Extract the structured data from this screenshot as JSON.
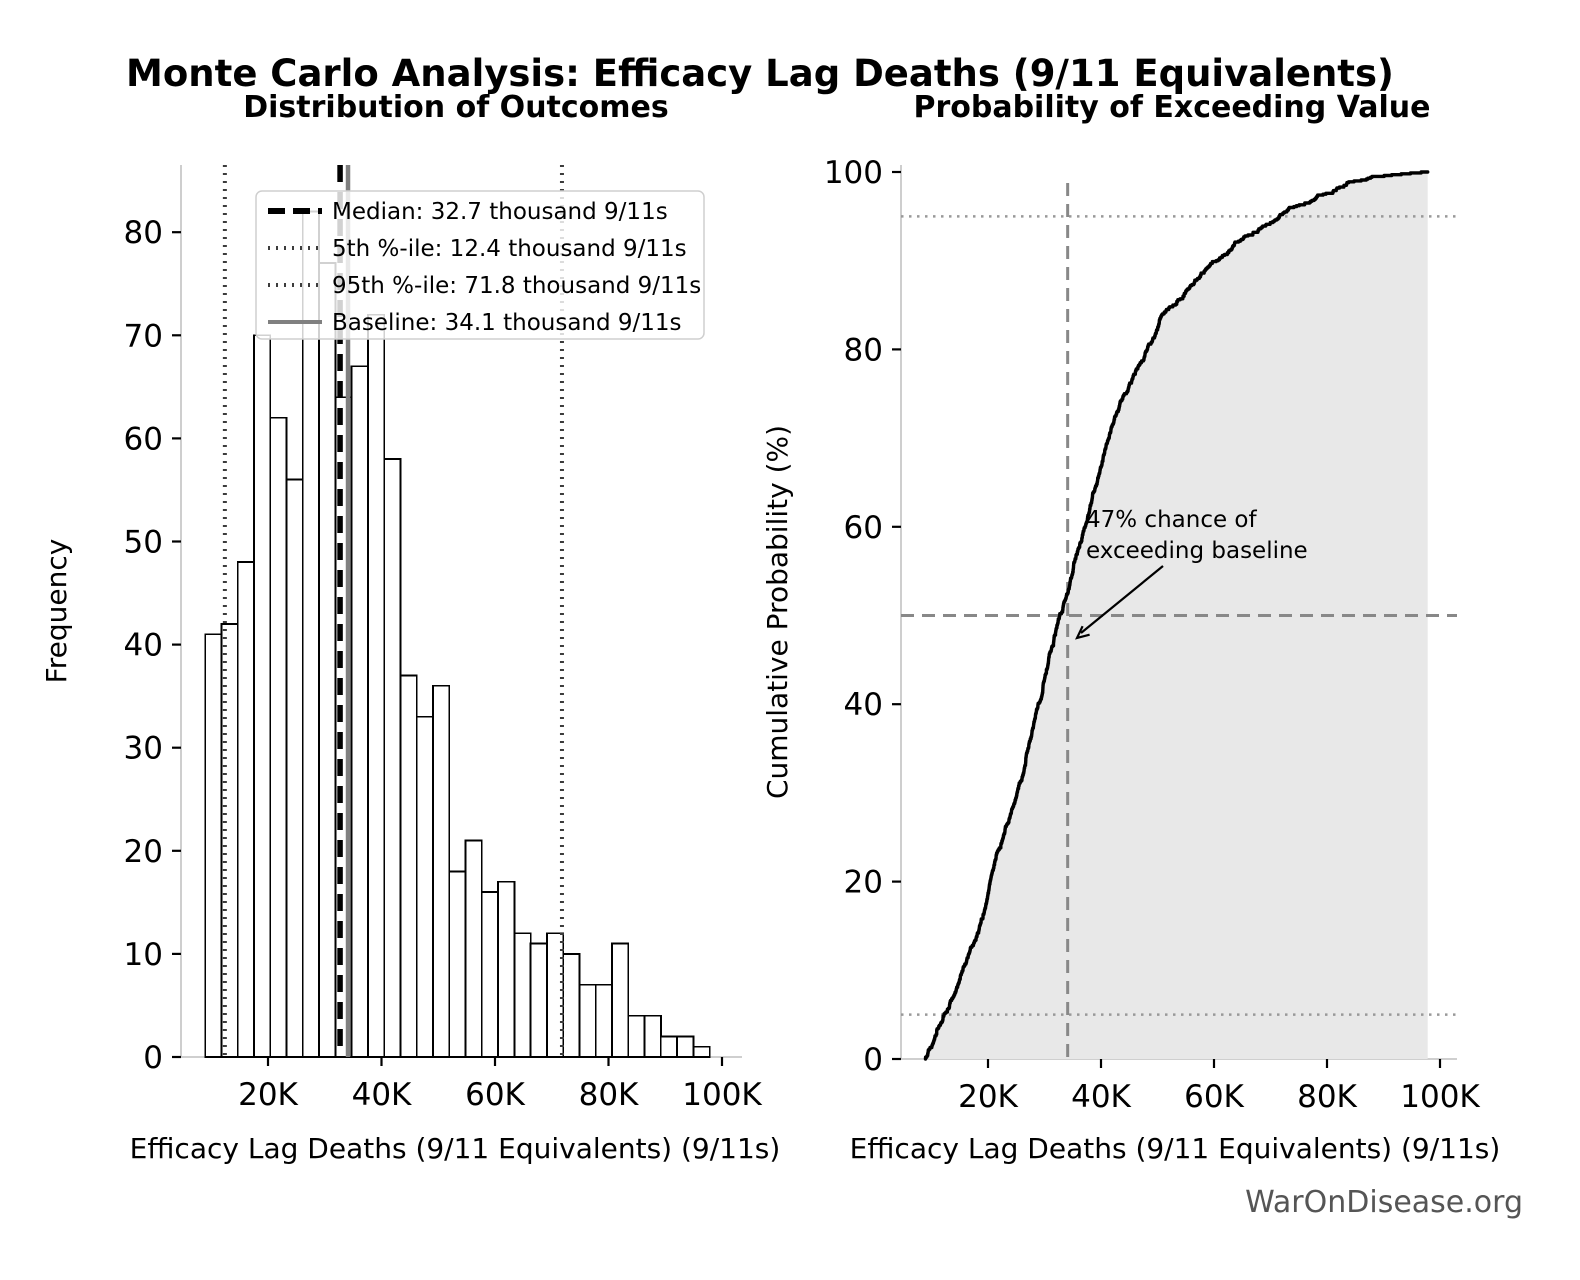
{
  "figure": {
    "title": "Monte Carlo Analysis: Efficacy Lag Deaths (9/11 Equivalents)",
    "watermark": "WarOnDisease.org"
  },
  "colors": {
    "bar_fill": "#ffffff",
    "bar_edge": "#000000",
    "median_line": "#000000",
    "percentile_dotted": "#3c3c3c",
    "baseline_line": "#808080",
    "cdf_curve": "#000000",
    "cdf_fill": "#e8e8e8",
    "cdf_dashed": "#888888",
    "cdf_dotted": "#999999",
    "spine": "#c8c8c8",
    "watermark": "#555555"
  },
  "chart_data": [
    {
      "type": "bar",
      "title": "Distribution of Outcomes",
      "xlabel": "Efficacy Lag Deaths (9/11 Equivalents) (9/11s)",
      "ylabel": "Frequency",
      "bin_start_thousands": 8.93,
      "bin_width_thousands": 2.8675,
      "counts": [
        41,
        42,
        48,
        70,
        62,
        56,
        82,
        77,
        64,
        67,
        72,
        58,
        37,
        33,
        36,
        18,
        21,
        16,
        17,
        12,
        11,
        12,
        10,
        7,
        7,
        11,
        4,
        4,
        2,
        2,
        1
      ],
      "total_samples": 1000,
      "x_tick_values": [
        20,
        40,
        60,
        80,
        100
      ],
      "x_tick_labels": [
        "20K",
        "40K",
        "60K",
        "80K",
        "100K"
      ],
      "y_tick_values": [
        0,
        10,
        20,
        30,
        40,
        50,
        60,
        70,
        80
      ],
      "ylim": [
        0,
        86.5
      ],
      "grid": false,
      "lines": {
        "median_thousands": 32.7,
        "p5_thousands": 12.4,
        "p95_thousands": 71.8,
        "baseline_thousands": 34.1
      },
      "legend": [
        {
          "label": "Median: 32.7 thousand 9/11s",
          "style": "dashed-black"
        },
        {
          "label": "5th %-ile: 12.4 thousand 9/11s",
          "style": "dotted-gray"
        },
        {
          "label": "95th %-ile: 71.8 thousand 9/11s",
          "style": "dotted-gray"
        },
        {
          "label": "Baseline: 34.1 thousand 9/11s",
          "style": "solid-gray"
        }
      ],
      "legend_position": "upper-left-inside"
    },
    {
      "type": "line",
      "title": "Probability of Exceeding Value",
      "xlabel": "Efficacy Lag Deaths (9/11 Equivalents) (9/11s)",
      "ylabel": "Cumulative Probability (%)",
      "x_tick_values": [
        20,
        40,
        60,
        80,
        100
      ],
      "x_tick_labels": [
        "20K",
        "40K",
        "60K",
        "80K",
        "100K"
      ],
      "y_tick_values": [
        0,
        20,
        40,
        60,
        80,
        100
      ],
      "ylim": [
        0,
        100.7
      ],
      "grid": false,
      "bin_start_thousands": 8.93,
      "bin_width_thousands": 2.8675,
      "counts": [
        41,
        42,
        48,
        70,
        62,
        56,
        82,
        77,
        64,
        67,
        72,
        58,
        37,
        33,
        36,
        18,
        21,
        16,
        17,
        12,
        11,
        12,
        10,
        7,
        7,
        11,
        4,
        4,
        2,
        2,
        1
      ],
      "cumulative_percent_at_bin_ends": [
        4.1,
        8.3,
        13.1,
        20.1,
        26.3,
        31.9,
        40.1,
        47.8,
        54.2,
        60.9,
        68.1,
        73.9,
        77.6,
        80.9,
        84.5,
        86.3,
        88.4,
        90.0,
        91.7,
        92.9,
        94.0,
        95.2,
        96.2,
        96.9,
        97.6,
        98.7,
        99.1,
        99.5,
        99.7,
        99.9,
        100.0
      ],
      "hlines_percent": {
        "p95": 95,
        "fifty": 50,
        "p5": 5
      },
      "vline_baseline_thousands": 34.1,
      "annotation": {
        "line1": "47% chance of",
        "line2": "exceeding baseline"
      }
    }
  ]
}
